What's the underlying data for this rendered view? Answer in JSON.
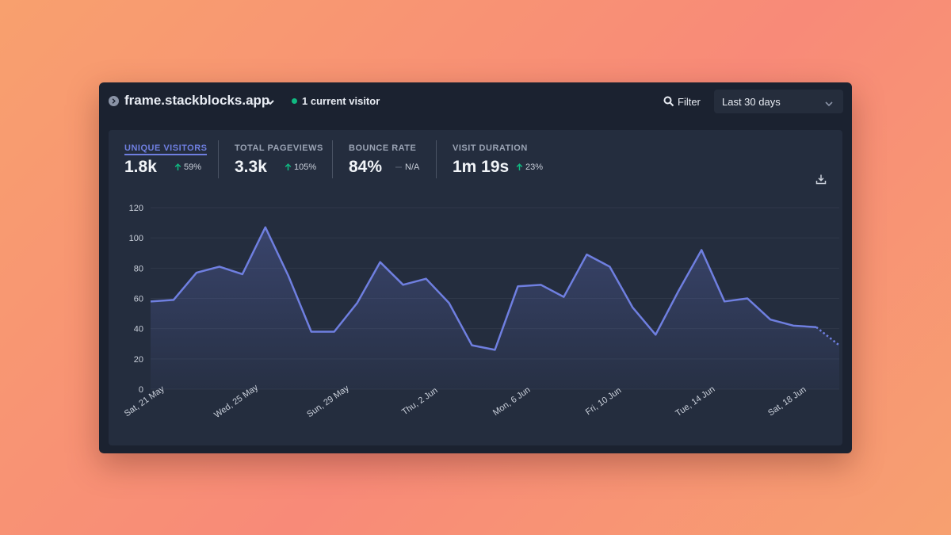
{
  "header": {
    "site_name": "frame.stackblocks.app",
    "current_visitors": "1 current visitor",
    "filter_label": "Filter",
    "date_range": "Last 30 days"
  },
  "stats": [
    {
      "label": "UNIQUE VISITORS",
      "value": "1.8k",
      "change": "59%",
      "trend": "up",
      "active": true
    },
    {
      "label": "TOTAL PAGEVIEWS",
      "value": "3.3k",
      "change": "105%",
      "trend": "up",
      "active": false
    },
    {
      "label": "BOUNCE RATE",
      "value": "84%",
      "change": "N/A",
      "trend": "none",
      "active": false
    },
    {
      "label": "VISIT DURATION",
      "value": "1m 19s",
      "change": "23%",
      "trend": "up",
      "active": false
    }
  ],
  "colors": {
    "line": "#6f7fe0",
    "accent": "#6f7fe0",
    "up": "#10b981",
    "live": "#10b981"
  },
  "chart_data": {
    "type": "area",
    "title": "",
    "xlabel": "",
    "ylabel": "",
    "ylim": [
      0,
      120
    ],
    "y_ticks": [
      0,
      20,
      40,
      60,
      80,
      100,
      120
    ],
    "grid": true,
    "x_tick_labels": [
      {
        "index": 0,
        "label": "Sat, 21 May"
      },
      {
        "index": 4,
        "label": "Wed, 25 May"
      },
      {
        "index": 8,
        "label": "Sun, 29 May"
      },
      {
        "index": 12,
        "label": "Thu, 2 Jun"
      },
      {
        "index": 16,
        "label": "Mon, 6 Jun"
      },
      {
        "index": 20,
        "label": "Fri, 10 Jun"
      },
      {
        "index": 24,
        "label": "Tue, 14 Jun"
      },
      {
        "index": 28,
        "label": "Sat, 18 Jun"
      }
    ],
    "series": [
      {
        "values": [
          58,
          59,
          77,
          81,
          76,
          107,
          75,
          38,
          38,
          57,
          84,
          69,
          73,
          57,
          29,
          26,
          68,
          69,
          61,
          89,
          81,
          54,
          36,
          65,
          92,
          58,
          60,
          46,
          42,
          41,
          29
        ],
        "projected_from_index": 29
      }
    ]
  }
}
